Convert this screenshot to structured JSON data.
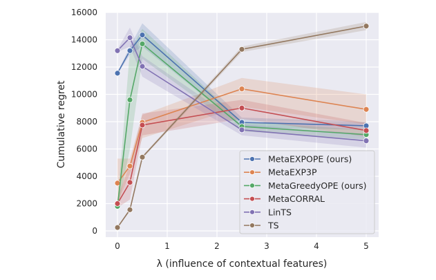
{
  "chart_data": {
    "type": "line",
    "xlabel": "λ (influence of contextual features)",
    "ylabel": "Cumulative regret",
    "x": [
      0,
      0.25,
      0.5,
      2.5,
      5
    ],
    "xlim": [
      -0.23,
      5.25
    ],
    "ylim": [
      -450,
      16000
    ],
    "xticks": [
      0,
      1,
      2,
      3,
      4,
      5
    ],
    "yticks": [
      0,
      2000,
      4000,
      6000,
      8000,
      10000,
      12000,
      14000,
      16000
    ],
    "grid": true,
    "legend": "bottom-right",
    "series": [
      {
        "name": "MetaEXPOPE (ours)",
        "color": "#4c72b0",
        "values": [
          11550,
          13200,
          14350,
          7950,
          7700
        ],
        "lower": [
          11500,
          12900,
          13500,
          7600,
          7400
        ],
        "upper": [
          11600,
          13500,
          15200,
          8300,
          8000
        ]
      },
      {
        "name": "MetaEXP3P",
        "color": "#dd8452",
        "values": [
          3500,
          4750,
          7950,
          10400,
          8900
        ],
        "lower": [
          2000,
          4200,
          6800,
          9100,
          7800
        ],
        "upper": [
          5300,
          5300,
          8500,
          11200,
          10000
        ]
      },
      {
        "name": "MetaGreedyOPE (ours)",
        "color": "#55a868",
        "values": [
          1800,
          9600,
          13700,
          7650,
          7050
        ],
        "lower": [
          1500,
          6000,
          12600,
          7300,
          6700
        ],
        "upper": [
          2100,
          13200,
          14800,
          8000,
          7400
        ]
      },
      {
        "name": "MetaCORRAL",
        "color": "#c44e52",
        "values": [
          2000,
          3550,
          7750,
          9000,
          7350
        ],
        "lower": [
          1700,
          2300,
          7000,
          8200,
          6900
        ],
        "upper": [
          2400,
          4900,
          8600,
          9600,
          7900
        ]
      },
      {
        "name": "LinTS",
        "color": "#8172b3",
        "values": [
          13200,
          14150,
          12050,
          7400,
          6600
        ],
        "lower": [
          13100,
          13500,
          11300,
          7000,
          6100
        ],
        "upper": [
          13300,
          14900,
          12800,
          7800,
          7100
        ]
      },
      {
        "name": "TS",
        "color": "#937860",
        "values": [
          250,
          1550,
          5400,
          13300,
          15000
        ],
        "lower": [
          200,
          1450,
          5300,
          13100,
          14700
        ],
        "upper": [
          300,
          1650,
          5500,
          13500,
          15300
        ]
      }
    ]
  }
}
